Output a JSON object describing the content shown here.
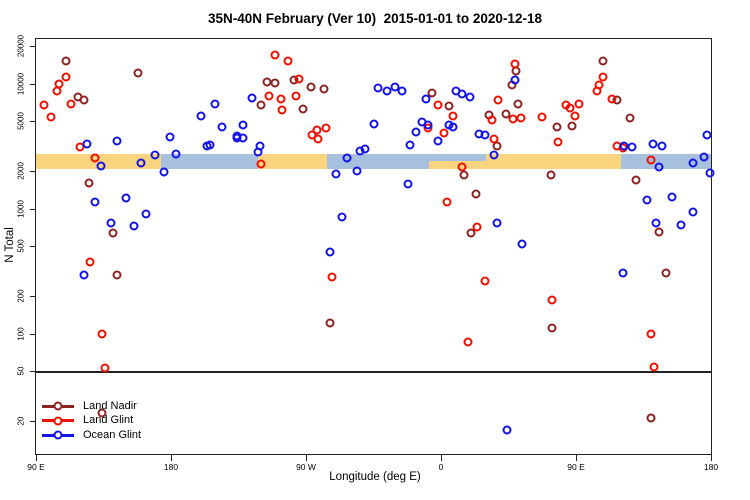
{
  "chart_data": {
    "type": "scatter",
    "title": "35N-40N February (Ver 10)  2015-01-01 to 2020-12-18",
    "xlabel": "Longitude (deg E)",
    "ylabel": "N Total",
    "x_axis": {
      "range_unwrapped_deg": [
        90,
        540
      ],
      "ticks": [
        {
          "lon": 90,
          "label": "90 E"
        },
        {
          "lon": 180,
          "label": "180"
        },
        {
          "lon": 270,
          "label": "90 W"
        },
        {
          "lon": 360,
          "label": "0"
        },
        {
          "lon": 450,
          "label": "90 E"
        },
        {
          "lon": 540,
          "label": "180"
        }
      ]
    },
    "y_axis": {
      "scale": "log10",
      "range": [
        11,
        22700
      ],
      "ticks": [
        20000,
        10000,
        5000,
        2000,
        1000,
        500,
        200,
        100,
        50,
        20
      ]
    },
    "grid": "off",
    "reference_line": {
      "value": 50,
      "color": "#222222"
    },
    "band": {
      "value_range": [
        2080,
        2730
      ],
      "colors": {
        "orange": "#FBD480",
        "blue": "#A7C0DE"
      },
      "segments": [
        {
          "from": 90,
          "to": 173,
          "color": "orange"
        },
        {
          "from": 173,
          "to": 238,
          "color": "blue"
        },
        {
          "from": 238,
          "to": 284,
          "color": "orange"
        },
        {
          "from": 284,
          "to": 352,
          "color": "blue"
        },
        {
          "from": 352,
          "to": 390,
          "color": "overlap"
        },
        {
          "from": 390,
          "to": 480,
          "color": "orange"
        },
        {
          "from": 480,
          "to": 540,
          "color": "blue"
        }
      ]
    },
    "legend": {
      "position": "bottom-left-inside",
      "entries": [
        "Land Nadir",
        "Land Glint",
        "Ocean Glint"
      ]
    },
    "series": [
      {
        "name": "Land Nadir",
        "color": "#8B2323",
        "points": [
          [
            110,
            15200
          ],
          [
            158,
            12200
          ],
          [
            118,
            7800
          ],
          [
            122,
            7400
          ],
          [
            125,
            1600
          ],
          [
            141,
            640
          ],
          [
            144,
            294
          ],
          [
            134,
            23
          ],
          [
            240,
            6700
          ],
          [
            244,
            10300
          ],
          [
            249,
            10100
          ],
          [
            262,
            10700
          ],
          [
            273,
            9450
          ],
          [
            282,
            9060
          ],
          [
            268,
            6290
          ],
          [
            286,
            122
          ],
          [
            354,
            8440
          ],
          [
            365,
            6560
          ],
          [
            375,
            1850
          ],
          [
            380,
            634
          ],
          [
            383,
            1320
          ],
          [
            392,
            5580
          ],
          [
            397,
            3170
          ],
          [
            403,
            5690
          ],
          [
            407,
            9790
          ],
          [
            410,
            12700
          ],
          [
            411,
            6820
          ],
          [
            434,
            110
          ],
          [
            433,
            1870
          ],
          [
            437,
            4480
          ],
          [
            447,
            4580
          ],
          [
            468,
            15300
          ],
          [
            477,
            7440
          ],
          [
            486,
            5350
          ],
          [
            505,
            646
          ],
          [
            510,
            305
          ],
          [
            500,
            21
          ],
          [
            490,
            1680
          ]
        ]
      },
      {
        "name": "Land Glint",
        "color": "#EE1100",
        "points": [
          [
            110,
            11300
          ],
          [
            105,
            9950
          ],
          [
            104,
            8710
          ],
          [
            95,
            6750
          ],
          [
            100,
            5420
          ],
          [
            113,
            6900
          ],
          [
            119,
            3130
          ],
          [
            129,
            2530
          ],
          [
            134,
            99
          ],
          [
            136,
            53
          ],
          [
            126,
            374
          ],
          [
            249,
            16900
          ],
          [
            258,
            15100
          ],
          [
            245,
            7960
          ],
          [
            254,
            6130
          ],
          [
            253,
            7540
          ],
          [
            265,
            10850
          ],
          [
            263,
            7960
          ],
          [
            277,
            4260
          ],
          [
            274,
            3880
          ],
          [
            283,
            4420
          ],
          [
            278,
            3600
          ],
          [
            240,
            2290
          ],
          [
            287,
            285
          ],
          [
            351,
            4420
          ],
          [
            358,
            6750
          ],
          [
            362,
            4000
          ],
          [
            368,
            5460
          ],
          [
            374,
            2160
          ],
          [
            364,
            1135
          ],
          [
            384,
            712
          ],
          [
            378,
            86
          ],
          [
            389,
            264
          ],
          [
            394,
            5130
          ],
          [
            395,
            3590
          ],
          [
            398,
            7350
          ],
          [
            408,
            5240
          ],
          [
            413,
            5300
          ],
          [
            409,
            14450
          ],
          [
            427,
            5370
          ],
          [
            434,
            187
          ],
          [
            438,
            3440
          ],
          [
            443,
            6750
          ],
          [
            446,
            6430
          ],
          [
            449,
            5460
          ],
          [
            452,
            6860
          ],
          [
            464,
            8690
          ],
          [
            465,
            9810
          ],
          [
            468,
            11240
          ],
          [
            474,
            7540
          ],
          [
            477,
            3170
          ],
          [
            481,
            3070
          ],
          [
            500,
            2470
          ],
          [
            500,
            100
          ],
          [
            502,
            54
          ]
        ]
      },
      {
        "name": "Ocean Glint",
        "color": "#1414E6",
        "points": [
          [
            124,
            3280
          ],
          [
            144,
            3490
          ],
          [
            133,
            2190
          ],
          [
            160,
            2330
          ],
          [
            169,
            2660
          ],
          [
            183,
            2710
          ],
          [
            179,
            3760
          ],
          [
            204,
            3180
          ],
          [
            175,
            1950
          ],
          [
            224,
            3690
          ],
          [
            238,
            2860
          ],
          [
            129,
            1125
          ],
          [
            150,
            1210
          ],
          [
            163,
            900
          ],
          [
            140,
            760
          ],
          [
            155,
            725
          ],
          [
            122,
            297
          ],
          [
            209,
            6860
          ],
          [
            234,
            7630
          ],
          [
            200,
            5460
          ],
          [
            214,
            4530
          ],
          [
            228,
            4630
          ],
          [
            224,
            3790
          ],
          [
            228,
            3700
          ],
          [
            206,
            3220
          ],
          [
            239,
            3150
          ],
          [
            297,
            2540
          ],
          [
            306,
            2890
          ],
          [
            290,
            1895
          ],
          [
            304,
            1990
          ],
          [
            294,
            860
          ],
          [
            286,
            450
          ],
          [
            315,
            4790
          ],
          [
            318,
            9160
          ],
          [
            309,
            2990
          ],
          [
            324,
            8720
          ],
          [
            329,
            9360
          ],
          [
            334,
            8720
          ],
          [
            350,
            7540
          ],
          [
            370,
            8720
          ],
          [
            374,
            8270
          ],
          [
            379,
            7750
          ],
          [
            347,
            4910
          ],
          [
            351,
            4700
          ],
          [
            343,
            4110
          ],
          [
            365,
            4630
          ],
          [
            368,
            4530
          ],
          [
            339,
            3250
          ],
          [
            358,
            3490
          ],
          [
            338,
            1565
          ],
          [
            385,
            3960
          ],
          [
            389,
            3870
          ],
          [
            395,
            2700
          ],
          [
            397,
            760
          ],
          [
            414,
            524
          ],
          [
            404,
            17
          ],
          [
            409,
            10700
          ],
          [
            482,
            3170
          ],
          [
            487,
            3100
          ],
          [
            501,
            3260
          ],
          [
            507,
            3180
          ],
          [
            505,
            2150
          ],
          [
            528,
            2330
          ],
          [
            535,
            2600
          ],
          [
            537,
            3870
          ],
          [
            539,
            1930
          ],
          [
            497,
            1175
          ],
          [
            514,
            1230
          ],
          [
            528,
            944
          ],
          [
            503,
            760
          ],
          [
            520,
            741
          ],
          [
            481,
            305
          ]
        ]
      }
    ]
  }
}
